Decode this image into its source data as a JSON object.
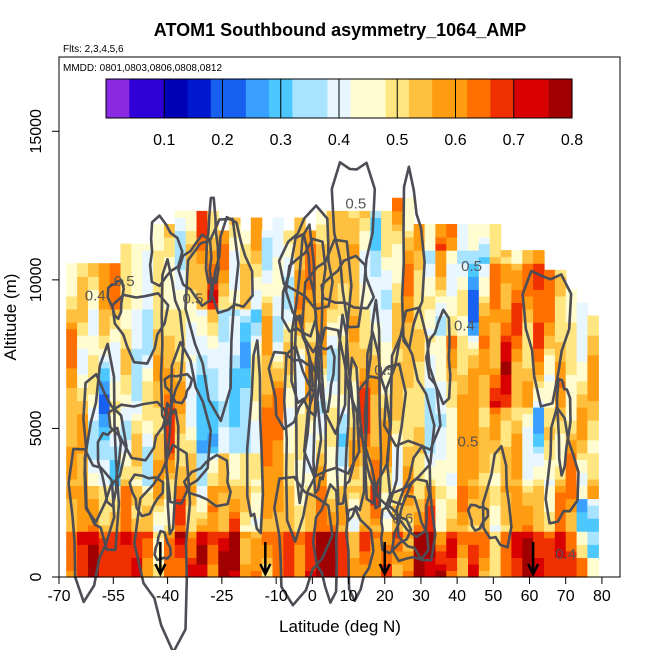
{
  "chart_data": {
    "type": "heatmap",
    "title": "ATOM1 Southbound asymmetry_1064_AMP",
    "subtitle_flights": "Flts: 2,3,4,5,6",
    "subtitle_dates": "MMDD: 0801,0803,0806,0808,0812",
    "xlabel": "Latitude (deg N)",
    "ylabel": "Altitude (m)",
    "xlim": [
      -70,
      85
    ],
    "ylim": [
      0,
      17500
    ],
    "x_ticks": [
      "-70",
      "-55",
      "-40",
      "-25",
      "-10",
      "0",
      "10",
      "20",
      "30",
      "40",
      "50",
      "60",
      "70",
      "80"
    ],
    "y_ticks": [
      "0",
      "5000",
      "10000",
      "15000"
    ],
    "colorbar": {
      "range": [
        0.0,
        0.8
      ],
      "ticks": [
        "0.1",
        "0.2",
        "0.3",
        "0.4",
        "0.5",
        "0.6",
        "0.7",
        "0.8"
      ],
      "colors": [
        "#8a2be2",
        "#3000d8",
        "#0000b4",
        "#0018d0",
        "#1860f0",
        "#3aa0ff",
        "#4cc8ff",
        "#a8e4ff",
        "#e8f6ff",
        "#fffcd0",
        "#ffe680",
        "#ffc040",
        "#ff9c10",
        "#ff7000",
        "#f03000",
        "#d80000",
        "#a00000"
      ]
    },
    "contour_labels": [
      "0.5",
      "0.5",
      "0.5",
      "0.4",
      "0.5",
      "0.4",
      "0.5",
      "0.5",
      "0.6",
      "0.4"
    ],
    "profile_markers_lat": [
      -42,
      -13,
      20,
      61
    ],
    "grid": false,
    "data_extent": {
      "lat": [
        -68,
        78
      ],
      "alt": [
        0,
        13500
      ]
    }
  }
}
